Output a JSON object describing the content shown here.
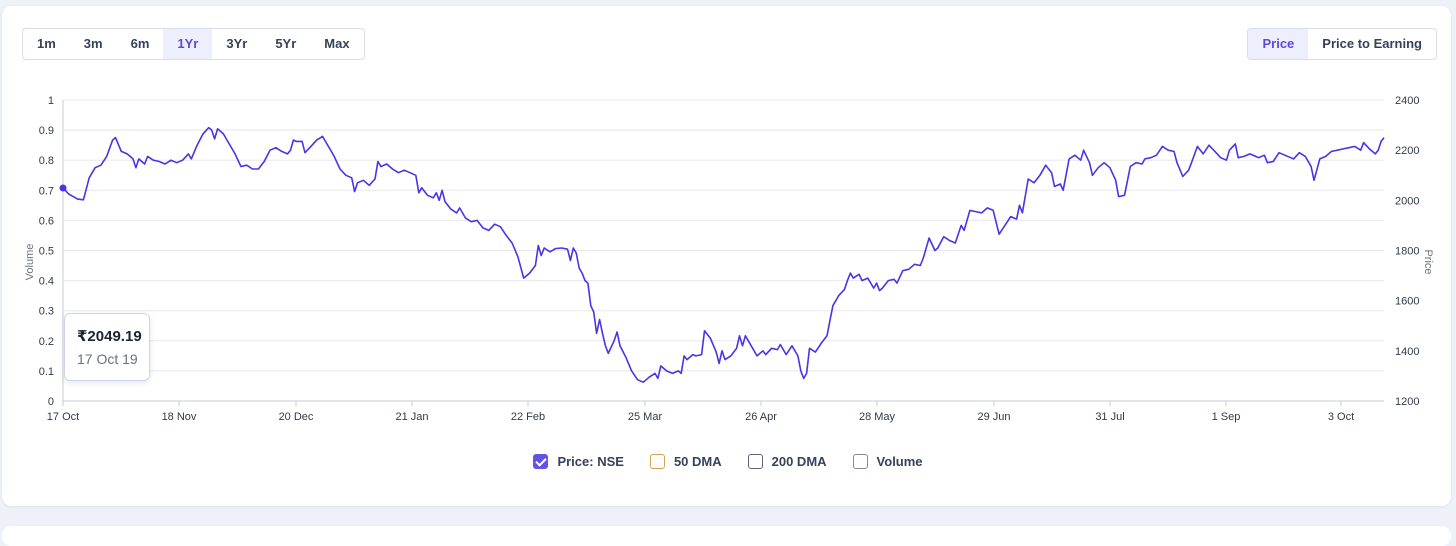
{
  "range_buttons": [
    {
      "label": "1m",
      "active": false
    },
    {
      "label": "3m",
      "active": false
    },
    {
      "label": "6m",
      "active": false
    },
    {
      "label": "1Yr",
      "active": true
    },
    {
      "label": "3Yr",
      "active": false
    },
    {
      "label": "5Yr",
      "active": false
    },
    {
      "label": "Max",
      "active": false
    }
  ],
  "mode_buttons": [
    {
      "label": "Price",
      "active": true
    },
    {
      "label": "Price to Earning",
      "active": false
    }
  ],
  "tooltip": {
    "price": "₹2049.19",
    "date": "17 Oct 19"
  },
  "legend": [
    {
      "label": "Price: NSE",
      "checked": true,
      "color": "#6355e0"
    },
    {
      "label": "50 DMA",
      "checked": false,
      "color": "#d4a054"
    },
    {
      "label": "200 DMA",
      "checked": false,
      "color": "#5b6380"
    },
    {
      "label": "Volume",
      "checked": false,
      "color": "#7e88a8"
    }
  ],
  "chart_data": {
    "type": "line",
    "series": [
      {
        "name": "Price: NSE",
        "color": "#4b33e6"
      }
    ],
    "left_axis": {
      "label": "Volume",
      "range": [
        0,
        1
      ],
      "ticks": [
        "0",
        "0.1",
        "0.2",
        "0.3",
        "0.4",
        "0.5",
        "0.6",
        "0.7",
        "0.8",
        "0.9",
        "1"
      ]
    },
    "right_axis": {
      "label": "Price",
      "range": [
        1200,
        2400
      ],
      "ticks": [
        "1200",
        "1400",
        "1600",
        "1800",
        "2000",
        "2200",
        "2400"
      ]
    },
    "x_ticks": [
      "17 Oct",
      "18 Nov",
      "20 Dec",
      "21 Jan",
      "22 Feb",
      "25 Mar",
      "26 Apr",
      "28 May",
      "29 Jun",
      "31 Jul",
      "1 Sep",
      "3 Oct"
    ],
    "grid": true,
    "price_points": [
      [
        0,
        2049
      ],
      [
        2,
        2025
      ],
      [
        5,
        2005
      ],
      [
        7,
        2002
      ],
      [
        9,
        2090
      ],
      [
        11,
        2130
      ],
      [
        13,
        2140
      ],
      [
        15,
        2175
      ],
      [
        17,
        2240
      ],
      [
        18,
        2250
      ],
      [
        20,
        2195
      ],
      [
        22,
        2185
      ],
      [
        24,
        2165
      ],
      [
        25,
        2130
      ],
      [
        26,
        2165
      ],
      [
        28,
        2145
      ],
      [
        29,
        2175
      ],
      [
        31,
        2160
      ],
      [
        33,
        2155
      ],
      [
        35,
        2145
      ],
      [
        37,
        2160
      ],
      [
        39,
        2150
      ],
      [
        41,
        2160
      ],
      [
        43,
        2185
      ],
      [
        44,
        2165
      ],
      [
        46,
        2220
      ],
      [
        48,
        2265
      ],
      [
        50,
        2290
      ],
      [
        51,
        2280
      ],
      [
        52,
        2245
      ],
      [
        53,
        2285
      ],
      [
        55,
        2265
      ],
      [
        57,
        2225
      ],
      [
        59,
        2185
      ],
      [
        61,
        2135
      ],
      [
        63,
        2140
      ],
      [
        65,
        2125
      ],
      [
        67,
        2125
      ],
      [
        69,
        2155
      ],
      [
        71,
        2200
      ],
      [
        73,
        2210
      ],
      [
        75,
        2195
      ],
      [
        77,
        2185
      ],
      [
        78,
        2200
      ],
      [
        79,
        2240
      ],
      [
        80,
        2235
      ],
      [
        82,
        2235
      ],
      [
        83,
        2190
      ],
      [
        85,
        2215
      ],
      [
        87,
        2240
      ],
      [
        89,
        2255
      ],
      [
        91,
        2215
      ],
      [
        93,
        2175
      ],
      [
        95,
        2125
      ],
      [
        97,
        2100
      ],
      [
        99,
        2090
      ],
      [
        100,
        2035
      ],
      [
        101,
        2070
      ],
      [
        103,
        2080
      ],
      [
        105,
        2060
      ],
      [
        107,
        2085
      ],
      [
        108,
        2155
      ],
      [
        109,
        2135
      ],
      [
        111,
        2145
      ],
      [
        113,
        2125
      ],
      [
        115,
        2110
      ],
      [
        117,
        2120
      ],
      [
        119,
        2110
      ],
      [
        121,
        2100
      ],
      [
        122,
        2030
      ],
      [
        123,
        2050
      ],
      [
        125,
        2020
      ],
      [
        127,
        2010
      ],
      [
        128,
        2030
      ],
      [
        129,
        2000
      ],
      [
        130,
        2040
      ],
      [
        131,
        1995
      ],
      [
        133,
        1965
      ],
      [
        135,
        1950
      ],
      [
        136,
        1970
      ],
      [
        138,
        1930
      ],
      [
        140,
        1915
      ],
      [
        142,
        1920
      ],
      [
        144,
        1890
      ],
      [
        146,
        1880
      ],
      [
        148,
        1905
      ],
      [
        150,
        1895
      ],
      [
        152,
        1860
      ],
      [
        154,
        1830
      ],
      [
        156,
        1775
      ],
      [
        158,
        1690
      ],
      [
        160,
        1710
      ],
      [
        162,
        1740
      ],
      [
        163,
        1820
      ],
      [
        164,
        1780
      ],
      [
        165,
        1810
      ],
      [
        167,
        1795
      ],
      [
        169,
        1808
      ],
      [
        171,
        1810
      ],
      [
        173,
        1805
      ],
      [
        174,
        1760
      ],
      [
        175,
        1810
      ],
      [
        176,
        1790
      ],
      [
        177,
        1730
      ],
      [
        178,
        1710
      ],
      [
        179,
        1680
      ],
      [
        180,
        1670
      ],
      [
        181,
        1580
      ],
      [
        182,
        1555
      ],
      [
        183,
        1470
      ],
      [
        184,
        1525
      ],
      [
        185,
        1470
      ],
      [
        186,
        1420
      ],
      [
        187,
        1390
      ],
      [
        189,
        1440
      ],
      [
        190,
        1475
      ],
      [
        191,
        1420
      ],
      [
        193,
        1375
      ],
      [
        195,
        1320
      ],
      [
        197,
        1285
      ],
      [
        199,
        1275
      ],
      [
        201,
        1295
      ],
      [
        203,
        1310
      ],
      [
        204,
        1290
      ],
      [
        205,
        1340
      ],
      [
        207,
        1320
      ],
      [
        209,
        1310
      ],
      [
        211,
        1320
      ],
      [
        212,
        1310
      ],
      [
        213,
        1380
      ],
      [
        214,
        1365
      ],
      [
        216,
        1385
      ],
      [
        217,
        1380
      ],
      [
        219,
        1385
      ],
      [
        220,
        1480
      ],
      [
        222,
        1450
      ],
      [
        224,
        1395
      ],
      [
        225,
        1350
      ],
      [
        226,
        1400
      ],
      [
        227,
        1365
      ],
      [
        229,
        1380
      ],
      [
        231,
        1410
      ],
      [
        232,
        1460
      ],
      [
        233,
        1420
      ],
      [
        234,
        1460
      ],
      [
        236,
        1420
      ],
      [
        238,
        1380
      ],
      [
        240,
        1400
      ],
      [
        241,
        1385
      ],
      [
        243,
        1410
      ],
      [
        245,
        1405
      ],
      [
        246,
        1425
      ],
      [
        248,
        1385
      ],
      [
        250,
        1420
      ],
      [
        252,
        1380
      ],
      [
        253,
        1320
      ],
      [
        254,
        1290
      ],
      [
        255,
        1310
      ],
      [
        256,
        1410
      ],
      [
        258,
        1395
      ],
      [
        260,
        1430
      ],
      [
        262,
        1460
      ],
      [
        263,
        1520
      ],
      [
        264,
        1580
      ],
      [
        266,
        1620
      ],
      [
        268,
        1645
      ],
      [
        269,
        1680
      ],
      [
        270,
        1710
      ],
      [
        271,
        1690
      ],
      [
        273,
        1705
      ],
      [
        274,
        1680
      ],
      [
        276,
        1690
      ],
      [
        278,
        1650
      ],
      [
        279,
        1670
      ],
      [
        280,
        1640
      ],
      [
        281,
        1650
      ],
      [
        283,
        1680
      ],
      [
        285,
        1685
      ],
      [
        286,
        1670
      ],
      [
        288,
        1720
      ],
      [
        290,
        1725
      ],
      [
        292,
        1745
      ],
      [
        294,
        1740
      ],
      [
        295,
        1770
      ],
      [
        297,
        1850
      ],
      [
        299,
        1800
      ],
      [
        300,
        1810
      ],
      [
        302,
        1855
      ],
      [
        304,
        1840
      ],
      [
        306,
        1830
      ],
      [
        308,
        1900
      ],
      [
        309,
        1880
      ],
      [
        311,
        1960
      ],
      [
        313,
        1955
      ],
      [
        315,
        1950
      ],
      [
        317,
        1970
      ],
      [
        319,
        1960
      ],
      [
        321,
        1865
      ],
      [
        323,
        1900
      ],
      [
        325,
        1935
      ],
      [
        327,
        1925
      ],
      [
        328,
        1980
      ],
      [
        329,
        1950
      ],
      [
        331,
        2085
      ],
      [
        333,
        2070
      ],
      [
        335,
        2100
      ],
      [
        337,
        2140
      ],
      [
        339,
        2110
      ],
      [
        340,
        2055
      ],
      [
        342,
        2065
      ],
      [
        343,
        2040
      ],
      [
        345,
        2165
      ],
      [
        347,
        2180
      ],
      [
        349,
        2160
      ],
      [
        350,
        2200
      ],
      [
        352,
        2150
      ],
      [
        353,
        2100
      ],
      [
        355,
        2130
      ],
      [
        357,
        2150
      ],
      [
        359,
        2130
      ],
      [
        361,
        2080
      ],
      [
        362,
        2015
      ],
      [
        364,
        2020
      ],
      [
        366,
        2135
      ],
      [
        368,
        2150
      ],
      [
        370,
        2145
      ],
      [
        371,
        2165
      ],
      [
        373,
        2170
      ],
      [
        375,
        2180
      ],
      [
        377,
        2215
      ],
      [
        379,
        2200
      ],
      [
        381,
        2195
      ],
      [
        382,
        2150
      ],
      [
        384,
        2095
      ],
      [
        386,
        2120
      ],
      [
        387,
        2150
      ],
      [
        389,
        2215
      ],
      [
        391,
        2185
      ],
      [
        393,
        2220
      ],
      [
        395,
        2195
      ],
      [
        397,
        2170
      ],
      [
        399,
        2160
      ],
      [
        400,
        2200
      ],
      [
        402,
        2225
      ],
      [
        403,
        2170
      ],
      [
        405,
        2175
      ],
      [
        407,
        2185
      ],
      [
        409,
        2175
      ],
      [
        410,
        2170
      ],
      [
        412,
        2180
      ],
      [
        413,
        2150
      ],
      [
        415,
        2155
      ],
      [
        417,
        2190
      ],
      [
        419,
        2180
      ],
      [
        421,
        2170
      ],
      [
        422,
        2165
      ],
      [
        424,
        2190
      ],
      [
        426,
        2175
      ],
      [
        428,
        2135
      ],
      [
        429,
        2080
      ],
      [
        431,
        2165
      ],
      [
        433,
        2175
      ],
      [
        435,
        2195
      ],
      [
        437,
        2200
      ],
      [
        439,
        2205
      ],
      [
        441,
        2210
      ],
      [
        443,
        2215
      ],
      [
        445,
        2200
      ],
      [
        446,
        2230
      ],
      [
        448,
        2205
      ],
      [
        450,
        2185
      ],
      [
        451,
        2200
      ],
      [
        452,
        2235
      ],
      [
        453,
        2250
      ]
    ]
  }
}
